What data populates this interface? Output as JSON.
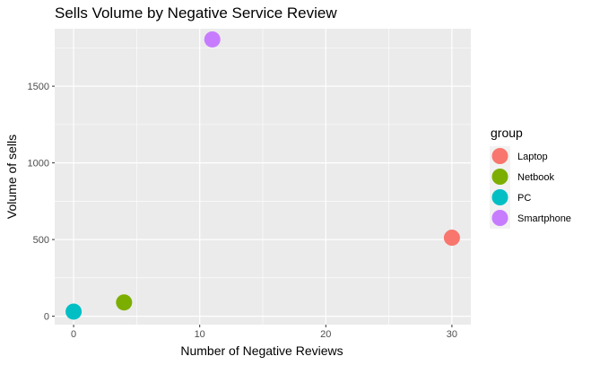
{
  "chart_data": {
    "type": "scatter",
    "title": "Sells Volume by Negative Service Review",
    "xlabel": "Number of Negative Reviews",
    "ylabel": "Volume of sells",
    "xlim": [
      -1.5,
      31.5
    ],
    "ylim": [
      -55,
      1875
    ],
    "x_ticks": [
      0,
      10,
      20,
      30
    ],
    "y_ticks": [
      0,
      500,
      1000,
      1500
    ],
    "grid": true,
    "legend": {
      "title": "group",
      "placement": "right",
      "entries": [
        "Laptop",
        "Netbook",
        "PC",
        "Smartphone"
      ]
    },
    "series": [
      {
        "name": "Laptop",
        "color": "#F8766D",
        "points": [
          {
            "x": 30,
            "y": 512
          }
        ]
      },
      {
        "name": "Netbook",
        "color": "#7CAE00",
        "points": [
          {
            "x": 4,
            "y": 90
          }
        ]
      },
      {
        "name": "PC",
        "color": "#00BFC4",
        "points": [
          {
            "x": 0,
            "y": 30
          }
        ]
      },
      {
        "name": "Smartphone",
        "color": "#C77CFF",
        "points": [
          {
            "x": 11,
            "y": 1805
          }
        ]
      }
    ]
  }
}
